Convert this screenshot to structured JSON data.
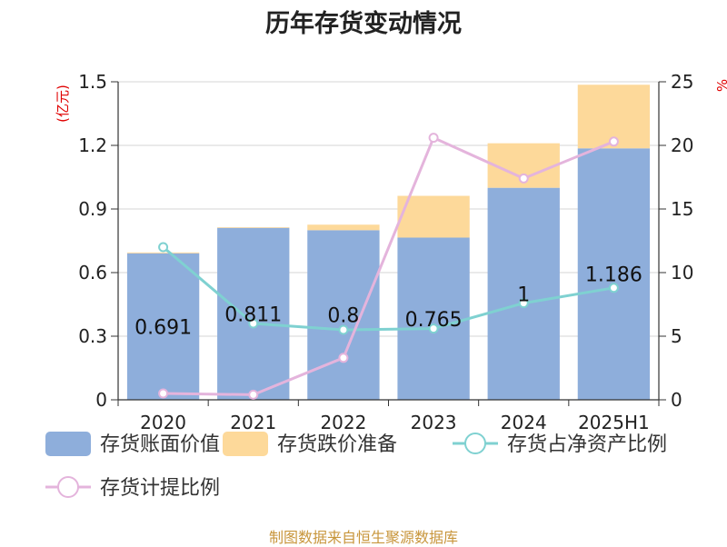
{
  "chart_data": {
    "type": "bar+line",
    "title": "历年存货变动情况",
    "categories": [
      "2020",
      "2021",
      "2022",
      "2023",
      "2024",
      "2025H1"
    ],
    "ylabel_left_unit": "(亿元)",
    "ylabel_right_unit": "%",
    "ylim_left": [
      0,
      1.5
    ],
    "yticks_left": [
      "0",
      "0.3",
      "0.6",
      "0.9",
      "1.2",
      "1.5"
    ],
    "ylim_right": [
      0,
      25
    ],
    "yticks_right": [
      "0",
      "5",
      "10",
      "15",
      "20",
      "25"
    ],
    "stacked": true,
    "grid": true,
    "legend_position": "bottom",
    "series": [
      {
        "name": "存货账面价值",
        "kind": "bar",
        "axis": "left",
        "color": "#8eaedb",
        "values": [
          0.691,
          0.811,
          0.8,
          0.765,
          1,
          1.186
        ],
        "labels": [
          "0.691",
          "0.811",
          "0.8",
          "0.765",
          "1",
          "1.186"
        ]
      },
      {
        "name": "存货跌价准备",
        "kind": "bar",
        "axis": "left",
        "color": "#fdd99a",
        "values": [
          0.004,
          0.003,
          0.026,
          0.197,
          0.21,
          0.3
        ]
      },
      {
        "name": "存货占净资产比例",
        "kind": "line",
        "axis": "right",
        "color": "#7fd1d1",
        "values": [
          12.0,
          6.0,
          5.5,
          5.6,
          7.6,
          8.8
        ]
      },
      {
        "name": "存货计提比例",
        "kind": "line",
        "axis": "right",
        "color": "#e4b4dc",
        "values": [
          0.5,
          0.4,
          3.3,
          20.6,
          17.4,
          20.3
        ]
      }
    ]
  },
  "source_note": "制图数据来自恒生聚源数据库"
}
